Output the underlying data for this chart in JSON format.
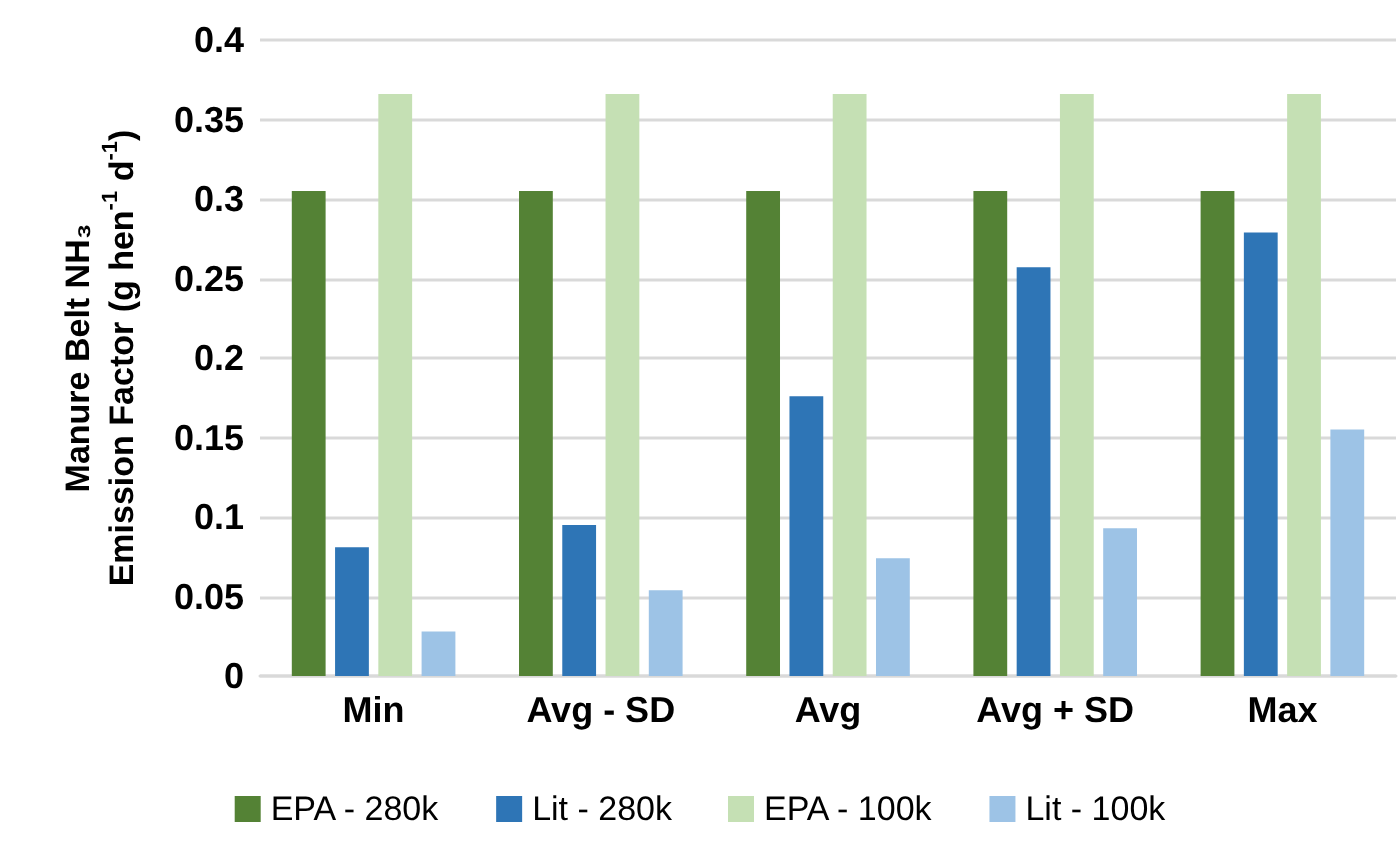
{
  "chart_data": {
    "type": "bar",
    "ylabel": "Manure Belt NH₃\nEmission Factor (g hen$^{-1}$ d$^{-1}$)",
    "categories": [
      "Min",
      "Avg - SD",
      "Avg",
      "Avg + SD",
      "Max"
    ],
    "series": [
      {
        "name": "EPA - 280k",
        "color": "#548235",
        "values": [
          0.305,
          0.305,
          0.305,
          0.305,
          0.305
        ]
      },
      {
        "name": "Lit - 280k",
        "color": "#2e75b6",
        "values": [
          0.081,
          0.095,
          0.176,
          0.257,
          0.279
        ]
      },
      {
        "name": "EPA - 100k",
        "color": "#c5e0b4",
        "values": [
          0.366,
          0.366,
          0.366,
          0.366,
          0.366
        ]
      },
      {
        "name": "Lit - 100k",
        "color": "#9dc3e6",
        "values": [
          0.028,
          0.054,
          0.074,
          0.093,
          0.155
        ]
      }
    ],
    "ylim": [
      0,
      0.4
    ],
    "yticks": [
      0,
      0.05,
      0.1,
      0.15,
      0.2,
      0.25,
      0.3,
      0.35,
      0.4
    ],
    "grid": "y",
    "legend": "bottom"
  }
}
